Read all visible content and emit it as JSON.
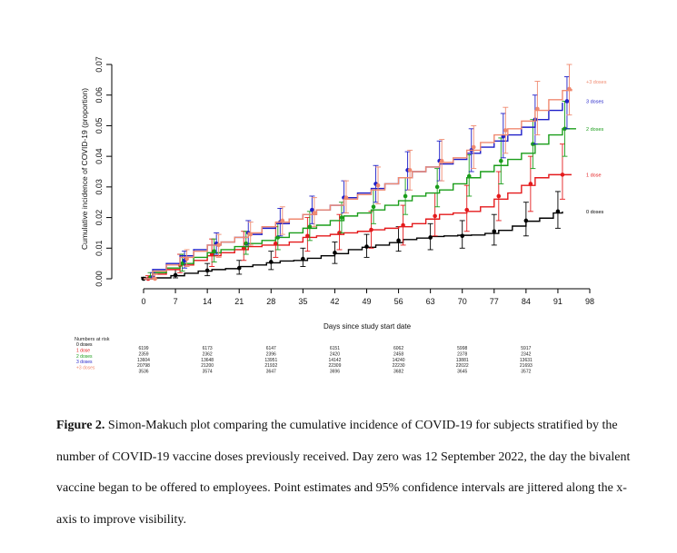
{
  "figure": {
    "caption_lead": "Figure 2.",
    "caption_text": "Simon-Makuch plot comparing the cumulative incidence of COVID-19 for subjects stratified by the number of COVID-19 vaccine doses previously received. Day zero was 12 September 2022, the day the bivalent vaccine began to be offered to employees. Point estimates and 95% confidence intervals are jittered along the x-axis to improve visibility."
  },
  "chart_data": {
    "type": "line",
    "step": true,
    "xlabel": "Days since study start date",
    "ylabel": "Cumulative incidence of COVID-19 (proportion)",
    "xlim": [
      0,
      98
    ],
    "ylim": [
      0,
      0.07
    ],
    "xticks": [
      0,
      7,
      14,
      21,
      28,
      35,
      42,
      49,
      56,
      63,
      70,
      77,
      84,
      91,
      98
    ],
    "yticks": [
      "0.00",
      "0.01",
      "0.02",
      "0.03",
      "0.04",
      "0.05",
      "0.06",
      "0.07"
    ],
    "grid": false,
    "legend": "right end labels",
    "series": [
      {
        "name": "0 doses",
        "color": "#000000",
        "x": [
          0,
          2,
          6,
          9,
          12,
          15,
          18,
          21,
          24,
          27,
          30,
          33,
          36,
          39,
          42,
          45,
          48,
          51,
          54,
          57,
          60,
          63,
          66,
          69,
          72,
          75,
          78,
          81,
          84,
          87,
          90,
          92
        ],
        "y": [
          0,
          0.0003,
          0.001,
          0.0018,
          0.0025,
          0.003,
          0.0033,
          0.004,
          0.0045,
          0.0052,
          0.0058,
          0.006,
          0.0067,
          0.0075,
          0.0082,
          0.0095,
          0.0103,
          0.011,
          0.0118,
          0.0128,
          0.0133,
          0.0138,
          0.014,
          0.0142,
          0.0143,
          0.0148,
          0.0158,
          0.0172,
          0.0188,
          0.0198,
          0.0215,
          0.022
        ],
        "points": [
          {
            "x": 0,
            "y": 0,
            "lo": 0,
            "hi": 0.0005
          },
          {
            "x": 7,
            "y": 0.0012,
            "lo": 0.0003,
            "hi": 0.003
          },
          {
            "x": 14,
            "y": 0.0027,
            "lo": 0.001,
            "hi": 0.005
          },
          {
            "x": 21,
            "y": 0.0035,
            "lo": 0.0015,
            "hi": 0.006
          },
          {
            "x": 28,
            "y": 0.0055,
            "lo": 0.003,
            "hi": 0.009
          },
          {
            "x": 35,
            "y": 0.0065,
            "lo": 0.004,
            "hi": 0.01
          },
          {
            "x": 42,
            "y": 0.0085,
            "lo": 0.005,
            "hi": 0.012
          },
          {
            "x": 49,
            "y": 0.0105,
            "lo": 0.007,
            "hi": 0.0145
          },
          {
            "x": 56,
            "y": 0.0125,
            "lo": 0.009,
            "hi": 0.017
          },
          {
            "x": 63,
            "y": 0.0135,
            "lo": 0.0095,
            "hi": 0.018
          },
          {
            "x": 70,
            "y": 0.014,
            "lo": 0.01,
            "hi": 0.019
          },
          {
            "x": 77,
            "y": 0.0155,
            "lo": 0.011,
            "hi": 0.021
          },
          {
            "x": 84,
            "y": 0.019,
            "lo": 0.014,
            "hi": 0.025
          },
          {
            "x": 91,
            "y": 0.022,
            "lo": 0.0165,
            "hi": 0.0285
          }
        ]
      },
      {
        "name": "1 dose",
        "color": "#e41a1c",
        "x": [
          0,
          2,
          5,
          8,
          11,
          14,
          17,
          20,
          23,
          26,
          29,
          32,
          35,
          38,
          41,
          44,
          47,
          50,
          53,
          56,
          59,
          62,
          65,
          68,
          71,
          74,
          77,
          80,
          83,
          86,
          89,
          92,
          94
        ],
        "y": [
          0,
          0.0015,
          0.003,
          0.0045,
          0.006,
          0.0075,
          0.0085,
          0.0095,
          0.0105,
          0.011,
          0.011,
          0.012,
          0.0135,
          0.014,
          0.0145,
          0.015,
          0.0155,
          0.016,
          0.0165,
          0.017,
          0.018,
          0.0195,
          0.021,
          0.0215,
          0.022,
          0.0235,
          0.026,
          0.028,
          0.0305,
          0.033,
          0.034,
          0.034,
          0.034
        ],
        "points": [
          {
            "x": 1,
            "y": 0,
            "lo": 0,
            "hi": 0.001
          },
          {
            "x": 8,
            "y": 0.0045,
            "lo": 0.002,
            "hi": 0.008
          },
          {
            "x": 15,
            "y": 0.008,
            "lo": 0.004,
            "hi": 0.013
          },
          {
            "x": 22,
            "y": 0.01,
            "lo": 0.006,
            "hi": 0.0155
          },
          {
            "x": 29,
            "y": 0.0115,
            "lo": 0.007,
            "hi": 0.017
          },
          {
            "x": 36,
            "y": 0.014,
            "lo": 0.009,
            "hi": 0.02
          },
          {
            "x": 43,
            "y": 0.015,
            "lo": 0.0095,
            "hi": 0.021
          },
          {
            "x": 50,
            "y": 0.016,
            "lo": 0.01,
            "hi": 0.022
          },
          {
            "x": 57,
            "y": 0.0175,
            "lo": 0.011,
            "hi": 0.024
          },
          {
            "x": 64,
            "y": 0.0205,
            "lo": 0.014,
            "hi": 0.028
          },
          {
            "x": 71,
            "y": 0.0225,
            "lo": 0.0155,
            "hi": 0.0305
          },
          {
            "x": 78,
            "y": 0.027,
            "lo": 0.019,
            "hi": 0.035
          },
          {
            "x": 85,
            "y": 0.031,
            "lo": 0.022,
            "hi": 0.04
          },
          {
            "x": 92,
            "y": 0.034,
            "lo": 0.026,
            "hi": 0.044
          }
        ]
      },
      {
        "name": "2 doses",
        "color": "#1a9d1a",
        "x": [
          0,
          2,
          5,
          8,
          11,
          14,
          17,
          20,
          23,
          26,
          29,
          32,
          35,
          38,
          41,
          44,
          47,
          50,
          53,
          56,
          59,
          62,
          65,
          68,
          71,
          74,
          77,
          80,
          83,
          86,
          89,
          92,
          95
        ],
        "y": [
          0,
          0.002,
          0.0035,
          0.005,
          0.007,
          0.0085,
          0.0095,
          0.0105,
          0.0115,
          0.0125,
          0.0135,
          0.015,
          0.0165,
          0.0175,
          0.019,
          0.0205,
          0.0215,
          0.0225,
          0.024,
          0.0255,
          0.027,
          0.028,
          0.029,
          0.031,
          0.033,
          0.035,
          0.037,
          0.039,
          0.041,
          0.044,
          0.047,
          0.049,
          0.049
        ],
        "points": [
          {
            "x": 1.5,
            "y": 0.0005,
            "lo": 0,
            "hi": 0.002
          },
          {
            "x": 8.5,
            "y": 0.005,
            "lo": 0.0025,
            "hi": 0.008
          },
          {
            "x": 15.5,
            "y": 0.009,
            "lo": 0.0055,
            "hi": 0.013
          },
          {
            "x": 22.5,
            "y": 0.0115,
            "lo": 0.008,
            "hi": 0.0155
          },
          {
            "x": 29.5,
            "y": 0.0135,
            "lo": 0.0095,
            "hi": 0.018
          },
          {
            "x": 36.5,
            "y": 0.017,
            "lo": 0.0125,
            "hi": 0.022
          },
          {
            "x": 43.5,
            "y": 0.02,
            "lo": 0.015,
            "hi": 0.025
          },
          {
            "x": 50.5,
            "y": 0.0235,
            "lo": 0.018,
            "hi": 0.029
          },
          {
            "x": 57.5,
            "y": 0.027,
            "lo": 0.021,
            "hi": 0.033
          },
          {
            "x": 64.5,
            "y": 0.03,
            "lo": 0.0235,
            "hi": 0.036
          },
          {
            "x": 71.5,
            "y": 0.0335,
            "lo": 0.027,
            "hi": 0.0405
          },
          {
            "x": 78.5,
            "y": 0.0385,
            "lo": 0.031,
            "hi": 0.046
          },
          {
            "x": 85.5,
            "y": 0.044,
            "lo": 0.036,
            "hi": 0.052
          },
          {
            "x": 92.5,
            "y": 0.049,
            "lo": 0.04,
            "hi": 0.058
          }
        ]
      },
      {
        "name": "3 doses",
        "color": "#1f1fc8",
        "x": [
          0,
          2,
          5,
          8,
          11,
          14,
          17,
          20,
          23,
          26,
          29,
          32,
          35,
          38,
          41,
          44,
          47,
          50,
          53,
          56,
          59,
          62,
          65,
          68,
          71,
          74,
          77,
          80,
          83,
          86,
          89,
          92
        ],
        "y": [
          0,
          0.003,
          0.005,
          0.0075,
          0.0095,
          0.011,
          0.012,
          0.0135,
          0.0145,
          0.0165,
          0.018,
          0.0195,
          0.021,
          0.0225,
          0.024,
          0.0265,
          0.028,
          0.0295,
          0.031,
          0.033,
          0.035,
          0.0365,
          0.0375,
          0.039,
          0.041,
          0.043,
          0.045,
          0.047,
          0.0495,
          0.052,
          0.055,
          0.0575
        ],
        "points": [
          {
            "x": 2,
            "y": 0.0005,
            "lo": 0,
            "hi": 0.002
          },
          {
            "x": 9,
            "y": 0.006,
            "lo": 0.0035,
            "hi": 0.009
          },
          {
            "x": 16,
            "y": 0.0115,
            "lo": 0.008,
            "hi": 0.015
          },
          {
            "x": 23,
            "y": 0.015,
            "lo": 0.011,
            "hi": 0.019
          },
          {
            "x": 30,
            "y": 0.0185,
            "lo": 0.014,
            "hi": 0.023
          },
          {
            "x": 37,
            "y": 0.0225,
            "lo": 0.018,
            "hi": 0.027
          },
          {
            "x": 44,
            "y": 0.0265,
            "lo": 0.0215,
            "hi": 0.032
          },
          {
            "x": 51,
            "y": 0.031,
            "lo": 0.025,
            "hi": 0.037
          },
          {
            "x": 58,
            "y": 0.0355,
            "lo": 0.029,
            "hi": 0.0415
          },
          {
            "x": 65,
            "y": 0.0385,
            "lo": 0.032,
            "hi": 0.045
          },
          {
            "x": 72,
            "y": 0.042,
            "lo": 0.035,
            "hi": 0.049
          },
          {
            "x": 79,
            "y": 0.0465,
            "lo": 0.0395,
            "hi": 0.054
          },
          {
            "x": 86,
            "y": 0.052,
            "lo": 0.044,
            "hi": 0.06
          },
          {
            "x": 93,
            "y": 0.058,
            "lo": 0.049,
            "hi": 0.066
          }
        ]
      },
      {
        "name": "+3 doses",
        "color": "#f08a70",
        "x": [
          0,
          2,
          5,
          8,
          11,
          14,
          17,
          20,
          23,
          26,
          29,
          32,
          35,
          38,
          41,
          44,
          47,
          50,
          53,
          56,
          59,
          62,
          65,
          68,
          71,
          74,
          77,
          80,
          83,
          86,
          89,
          92,
          94
        ],
        "y": [
          0,
          0.0025,
          0.0045,
          0.007,
          0.009,
          0.011,
          0.012,
          0.0135,
          0.015,
          0.017,
          0.0185,
          0.0195,
          0.021,
          0.0225,
          0.024,
          0.026,
          0.0275,
          0.029,
          0.031,
          0.033,
          0.035,
          0.0365,
          0.038,
          0.0395,
          0.042,
          0.0445,
          0.047,
          0.049,
          0.0515,
          0.055,
          0.0585,
          0.0615,
          0.062
        ],
        "points": [
          {
            "x": 2.5,
            "y": 0,
            "lo": 0,
            "hi": 0.0015
          },
          {
            "x": 9.5,
            "y": 0.0065,
            "lo": 0.004,
            "hi": 0.0095
          },
          {
            "x": 16.5,
            "y": 0.011,
            "lo": 0.007,
            "hi": 0.0145
          },
          {
            "x": 23.5,
            "y": 0.0145,
            "lo": 0.011,
            "hi": 0.0185
          },
          {
            "x": 30.5,
            "y": 0.019,
            "lo": 0.0145,
            "hi": 0.0235
          },
          {
            "x": 37.5,
            "y": 0.0215,
            "lo": 0.017,
            "hi": 0.0265
          },
          {
            "x": 44.5,
            "y": 0.0265,
            "lo": 0.0215,
            "hi": 0.032
          },
          {
            "x": 51.5,
            "y": 0.0305,
            "lo": 0.0245,
            "hi": 0.0365
          },
          {
            "x": 58.5,
            "y": 0.0355,
            "lo": 0.029,
            "hi": 0.042
          },
          {
            "x": 65.5,
            "y": 0.0385,
            "lo": 0.032,
            "hi": 0.0455
          },
          {
            "x": 72.5,
            "y": 0.043,
            "lo": 0.036,
            "hi": 0.05
          },
          {
            "x": 79.5,
            "y": 0.0485,
            "lo": 0.041,
            "hi": 0.056
          },
          {
            "x": 86.5,
            "y": 0.0555,
            "lo": 0.047,
            "hi": 0.0645
          },
          {
            "x": 93.5,
            "y": 0.062,
            "lo": 0.0535,
            "hi": 0.07
          }
        ]
      }
    ],
    "risk_table": {
      "title": "Numbers at risk",
      "days": [
        0,
        14,
        28,
        42,
        56,
        70,
        84
      ],
      "rows": [
        {
          "label": "0 doses",
          "color": "#000000",
          "values": [
            "6199",
            "6173",
            "6147",
            "6151",
            "6062",
            "5998",
            "5917"
          ]
        },
        {
          "label": "1 dose",
          "color": "#e41a1c",
          "values": [
            "2359",
            "2362",
            "2396",
            "2420",
            "2458",
            "2378",
            "2342"
          ]
        },
        {
          "label": "2 doses",
          "color": "#1a9d1a",
          "values": [
            "13604",
            "13648",
            "13951",
            "14142",
            "14240",
            "13881",
            "13631"
          ]
        },
        {
          "label": "3 doses",
          "color": "#1f1fc8",
          "values": [
            "20798",
            "21200",
            "21932",
            "22309",
            "22230",
            "22022",
            "21693"
          ]
        },
        {
          "label": "+3 doses",
          "color": "#f08a70",
          "values": [
            "3536",
            "3574",
            "3647",
            "3696",
            "3682",
            "3645",
            "3572"
          ]
        }
      ]
    }
  }
}
